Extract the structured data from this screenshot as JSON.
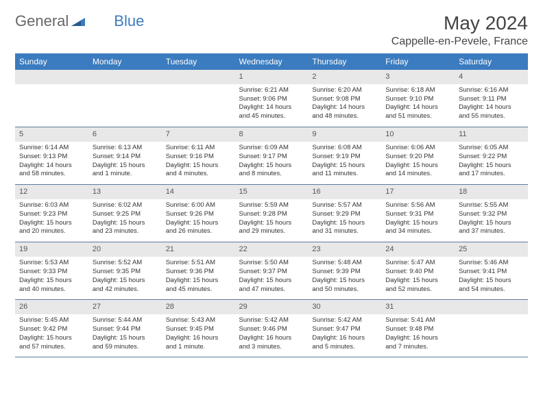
{
  "brand": {
    "part1": "General",
    "part2": "Blue"
  },
  "title": "May 2024",
  "location": "Cappelle-en-Pevele, France",
  "dayHeaders": [
    "Sunday",
    "Monday",
    "Tuesday",
    "Wednesday",
    "Thursday",
    "Friday",
    "Saturday"
  ],
  "colors": {
    "headerBg": "#3b7bbf",
    "dayNumBg": "#e8e8e8",
    "rowBorder": "#5a7a9a",
    "brandBlue": "#3b7bbf"
  },
  "weeks": [
    [
      null,
      null,
      null,
      {
        "n": "1",
        "sr": "6:21 AM",
        "ss": "9:06 PM",
        "dl": "14 hours and 45 minutes."
      },
      {
        "n": "2",
        "sr": "6:20 AM",
        "ss": "9:08 PM",
        "dl": "14 hours and 48 minutes."
      },
      {
        "n": "3",
        "sr": "6:18 AM",
        "ss": "9:10 PM",
        "dl": "14 hours and 51 minutes."
      },
      {
        "n": "4",
        "sr": "6:16 AM",
        "ss": "9:11 PM",
        "dl": "14 hours and 55 minutes."
      }
    ],
    [
      {
        "n": "5",
        "sr": "6:14 AM",
        "ss": "9:13 PM",
        "dl": "14 hours and 58 minutes."
      },
      {
        "n": "6",
        "sr": "6:13 AM",
        "ss": "9:14 PM",
        "dl": "15 hours and 1 minute."
      },
      {
        "n": "7",
        "sr": "6:11 AM",
        "ss": "9:16 PM",
        "dl": "15 hours and 4 minutes."
      },
      {
        "n": "8",
        "sr": "6:09 AM",
        "ss": "9:17 PM",
        "dl": "15 hours and 8 minutes."
      },
      {
        "n": "9",
        "sr": "6:08 AM",
        "ss": "9:19 PM",
        "dl": "15 hours and 11 minutes."
      },
      {
        "n": "10",
        "sr": "6:06 AM",
        "ss": "9:20 PM",
        "dl": "15 hours and 14 minutes."
      },
      {
        "n": "11",
        "sr": "6:05 AM",
        "ss": "9:22 PM",
        "dl": "15 hours and 17 minutes."
      }
    ],
    [
      {
        "n": "12",
        "sr": "6:03 AM",
        "ss": "9:23 PM",
        "dl": "15 hours and 20 minutes."
      },
      {
        "n": "13",
        "sr": "6:02 AM",
        "ss": "9:25 PM",
        "dl": "15 hours and 23 minutes."
      },
      {
        "n": "14",
        "sr": "6:00 AM",
        "ss": "9:26 PM",
        "dl": "15 hours and 26 minutes."
      },
      {
        "n": "15",
        "sr": "5:59 AM",
        "ss": "9:28 PM",
        "dl": "15 hours and 29 minutes."
      },
      {
        "n": "16",
        "sr": "5:57 AM",
        "ss": "9:29 PM",
        "dl": "15 hours and 31 minutes."
      },
      {
        "n": "17",
        "sr": "5:56 AM",
        "ss": "9:31 PM",
        "dl": "15 hours and 34 minutes."
      },
      {
        "n": "18",
        "sr": "5:55 AM",
        "ss": "9:32 PM",
        "dl": "15 hours and 37 minutes."
      }
    ],
    [
      {
        "n": "19",
        "sr": "5:53 AM",
        "ss": "9:33 PM",
        "dl": "15 hours and 40 minutes."
      },
      {
        "n": "20",
        "sr": "5:52 AM",
        "ss": "9:35 PM",
        "dl": "15 hours and 42 minutes."
      },
      {
        "n": "21",
        "sr": "5:51 AM",
        "ss": "9:36 PM",
        "dl": "15 hours and 45 minutes."
      },
      {
        "n": "22",
        "sr": "5:50 AM",
        "ss": "9:37 PM",
        "dl": "15 hours and 47 minutes."
      },
      {
        "n": "23",
        "sr": "5:48 AM",
        "ss": "9:39 PM",
        "dl": "15 hours and 50 minutes."
      },
      {
        "n": "24",
        "sr": "5:47 AM",
        "ss": "9:40 PM",
        "dl": "15 hours and 52 minutes."
      },
      {
        "n": "25",
        "sr": "5:46 AM",
        "ss": "9:41 PM",
        "dl": "15 hours and 54 minutes."
      }
    ],
    [
      {
        "n": "26",
        "sr": "5:45 AM",
        "ss": "9:42 PM",
        "dl": "15 hours and 57 minutes."
      },
      {
        "n": "27",
        "sr": "5:44 AM",
        "ss": "9:44 PM",
        "dl": "15 hours and 59 minutes."
      },
      {
        "n": "28",
        "sr": "5:43 AM",
        "ss": "9:45 PM",
        "dl": "16 hours and 1 minute."
      },
      {
        "n": "29",
        "sr": "5:42 AM",
        "ss": "9:46 PM",
        "dl": "16 hours and 3 minutes."
      },
      {
        "n": "30",
        "sr": "5:42 AM",
        "ss": "9:47 PM",
        "dl": "16 hours and 5 minutes."
      },
      {
        "n": "31",
        "sr": "5:41 AM",
        "ss": "9:48 PM",
        "dl": "16 hours and 7 minutes."
      },
      null
    ]
  ]
}
